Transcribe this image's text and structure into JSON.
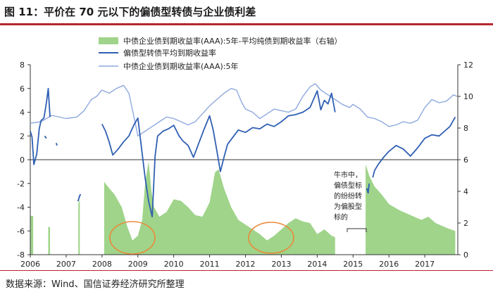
{
  "figure": {
    "title": "图 11：平价在 70 元以下的偏债型转债与企业债利差",
    "source": "数据来源：Wind、国信证券经济研究所整理"
  },
  "chart_data": {
    "type": "line+area",
    "x_labels": [
      "2006",
      "2007",
      "2008",
      "2009",
      "2010",
      "2011",
      "2012",
      "2013",
      "2014",
      "2015",
      "2016",
      "2017"
    ],
    "x_range": [
      2006,
      2017.92
    ],
    "left_axis": {
      "ylim": [
        -8,
        8
      ],
      "ticks": [
        8,
        6,
        4,
        2,
        0,
        -2,
        -4,
        -6,
        -8
      ]
    },
    "right_axis": {
      "ylim": [
        0,
        12
      ],
      "ticks": [
        12,
        10,
        8,
        6,
        4,
        2,
        0
      ]
    },
    "legend": [
      "中债企业债到期收益率(AAA):5年-平均纯债到期收益率（右轴）",
      "偏债型转债平均到期收益率",
      "中债企业债到期收益率(AAA):5年"
    ],
    "legend_position": "top-center",
    "series": [
      {
        "name": "中债企业债到期收益率(AAA):5年-平均纯债到期收益率（右轴）",
        "axis": "right",
        "kind": "area",
        "color": "#9fd48a",
        "segments": [
          [
            [
              2006.0,
              2.45
            ],
            [
              2006.08,
              2.45
            ]
          ],
          [
            [
              2006.5,
              1.75
            ],
            [
              2006.55,
              1.75
            ]
          ],
          [
            [
              2007.34,
              3.2
            ],
            [
              2007.38,
              3.5
            ]
          ],
          [
            [
              2008.06,
              4.6
            ],
            [
              2008.2,
              4.2
            ],
            [
              2008.35,
              3.8
            ],
            [
              2008.55,
              3.0
            ],
            [
              2008.7,
              1.8
            ],
            [
              2008.85,
              0.9
            ],
            [
              2009.0,
              1.2
            ],
            [
              2009.12,
              2.2
            ],
            [
              2009.2,
              4.5
            ],
            [
              2009.3,
              5.9
            ],
            [
              2009.38,
              4.0
            ],
            [
              2009.45,
              3.0
            ],
            [
              2009.6,
              2.4
            ],
            [
              2009.8,
              2.7
            ],
            [
              2010.0,
              3.5
            ],
            [
              2010.2,
              3.4
            ],
            [
              2010.4,
              3.0
            ],
            [
              2010.6,
              2.5
            ],
            [
              2010.8,
              2.4
            ],
            [
              2011.0,
              3.3
            ],
            [
              2011.15,
              5.2
            ],
            [
              2011.25,
              5.4
            ],
            [
              2011.4,
              4.2
            ],
            [
              2011.6,
              3.0
            ],
            [
              2011.8,
              2.2
            ],
            [
              2012.0,
              1.9
            ],
            [
              2012.2,
              1.6
            ],
            [
              2012.4,
              1.3
            ],
            [
              2012.6,
              0.9
            ],
            [
              2012.8,
              1.2
            ],
            [
              2013.0,
              1.6
            ],
            [
              2013.2,
              2.0
            ],
            [
              2013.4,
              2.3
            ],
            [
              2013.6,
              2.1
            ],
            [
              2013.8,
              2.0
            ],
            [
              2014.0,
              1.3
            ],
            [
              2014.2,
              1.6
            ],
            [
              2014.4,
              1.2
            ],
            [
              2014.5,
              1.1
            ]
          ],
          [
            [
              2015.35,
              5.7
            ],
            [
              2015.45,
              5.0
            ],
            [
              2015.6,
              4.3
            ],
            [
              2015.8,
              3.8
            ],
            [
              2016.0,
              3.2
            ],
            [
              2016.3,
              2.8
            ],
            [
              2016.6,
              2.5
            ],
            [
              2016.9,
              2.2
            ],
            [
              2017.1,
              2.4
            ],
            [
              2017.3,
              2.0
            ],
            [
              2017.6,
              1.7
            ],
            [
              2017.85,
              1.5
            ]
          ]
        ]
      },
      {
        "name": "偏债型转债平均到期收益率",
        "axis": "left",
        "kind": "line",
        "color": "#2f5fb3",
        "segments": [
          [
            [
              2006.0,
              2.4
            ],
            [
              2006.05,
              1.9
            ],
            [
              2006.1,
              -0.4
            ],
            [
              2006.18,
              0.5
            ],
            [
              2006.25,
              2.6
            ],
            [
              2006.3,
              3.3
            ],
            [
              2006.38,
              3.5
            ],
            [
              2006.45,
              4.8
            ],
            [
              2006.5,
              6.0
            ],
            [
              2006.55,
              3.6
            ]
          ],
          [
            [
              2006.4,
              2.0
            ],
            [
              2006.45,
              1.8
            ]
          ],
          [
            [
              2006.72,
              1.4
            ],
            [
              2006.75,
              1.2
            ]
          ],
          [
            [
              2007.33,
              -3.5
            ],
            [
              2007.37,
              -3.1
            ],
            [
              2007.4,
              -2.9
            ]
          ],
          [
            [
              2008.0,
              3.0
            ],
            [
              2008.1,
              2.4
            ],
            [
              2008.2,
              1.5
            ],
            [
              2008.3,
              0.4
            ],
            [
              2008.45,
              0.9
            ],
            [
              2008.6,
              1.5
            ],
            [
              2008.75,
              2.0
            ],
            [
              2008.9,
              3.0
            ],
            [
              2009.0,
              3.5
            ],
            [
              2009.1,
              1.0
            ],
            [
              2009.2,
              -1.5
            ],
            [
              2009.3,
              -3.5
            ],
            [
              2009.4,
              -4.8
            ],
            [
              2009.48,
              0.3
            ],
            [
              2009.55,
              2.0
            ],
            [
              2009.7,
              2.4
            ],
            [
              2009.85,
              2.6
            ],
            [
              2010.0,
              2.9
            ],
            [
              2010.15,
              2.0
            ],
            [
              2010.25,
              1.6
            ],
            [
              2010.4,
              1.2
            ],
            [
              2010.55,
              0.2
            ],
            [
              2010.7,
              1.4
            ],
            [
              2010.85,
              2.6
            ],
            [
              2011.0,
              3.7
            ],
            [
              2011.1,
              2.5
            ],
            [
              2011.2,
              0.8
            ],
            [
              2011.3,
              -1.0
            ],
            [
              2011.4,
              0.2
            ],
            [
              2011.5,
              1.3
            ],
            [
              2011.65,
              1.9
            ],
            [
              2011.8,
              2.5
            ],
            [
              2012.0,
              2.3
            ],
            [
              2012.2,
              2.7
            ],
            [
              2012.4,
              2.6
            ],
            [
              2012.6,
              3.0
            ],
            [
              2012.8,
              2.8
            ],
            [
              2013.0,
              3.2
            ],
            [
              2013.2,
              3.7
            ],
            [
              2013.4,
              3.8
            ],
            [
              2013.6,
              4.0
            ],
            [
              2013.8,
              4.4
            ],
            [
              2014.0,
              5.8
            ],
            [
              2014.1,
              4.2
            ],
            [
              2014.2,
              5.0
            ],
            [
              2014.3,
              4.7
            ],
            [
              2014.4,
              5.6
            ],
            [
              2014.5,
              4.0
            ]
          ],
          [
            [
              2015.38,
              -2.4
            ],
            [
              2015.42,
              -2.8
            ],
            [
              2015.45,
              -2.0
            ]
          ],
          [
            [
              2015.55,
              -1.5
            ],
            [
              2015.6,
              -0.9
            ],
            [
              2015.7,
              -0.4
            ],
            [
              2015.85,
              0.2
            ],
            [
              2016.0,
              0.7
            ],
            [
              2016.2,
              1.2
            ],
            [
              2016.4,
              0.9
            ],
            [
              2016.6,
              0.3
            ],
            [
              2016.8,
              1.0
            ],
            [
              2017.0,
              1.8
            ],
            [
              2017.2,
              2.1
            ],
            [
              2017.4,
              2.0
            ],
            [
              2017.55,
              2.4
            ],
            [
              2017.7,
              2.8
            ],
            [
              2017.85,
              3.6
            ]
          ]
        ]
      },
      {
        "name": "中债企业债到期收益率(AAA):5年",
        "axis": "right",
        "kind": "line",
        "color": "#8ea9de",
        "segments": [
          [
            [
              2006.0,
              8.3
            ],
            [
              2006.3,
              8.4
            ],
            [
              2006.6,
              8.8
            ],
            [
              2007.0,
              8.6
            ],
            [
              2007.3,
              8.7
            ],
            [
              2007.5,
              9.1
            ],
            [
              2007.7,
              9.8
            ],
            [
              2007.85,
              10.0
            ],
            [
              2008.0,
              10.4
            ],
            [
              2008.2,
              10.2
            ],
            [
              2008.4,
              10.5
            ],
            [
              2008.6,
              10.7
            ],
            [
              2008.75,
              10.2
            ],
            [
              2008.9,
              8.6
            ],
            [
              2009.0,
              7.5
            ],
            [
              2009.2,
              7.8
            ],
            [
              2009.4,
              8.1
            ],
            [
              2009.6,
              8.4
            ],
            [
              2009.8,
              8.7
            ],
            [
              2010.0,
              8.6
            ],
            [
              2010.2,
              8.4
            ],
            [
              2010.4,
              8.2
            ],
            [
              2010.6,
              8.4
            ],
            [
              2010.8,
              8.9
            ],
            [
              2011.0,
              9.4
            ],
            [
              2011.2,
              9.8
            ],
            [
              2011.4,
              10.2
            ],
            [
              2011.6,
              10.5
            ],
            [
              2011.75,
              10.4
            ],
            [
              2011.9,
              9.6
            ],
            [
              2012.0,
              9.2
            ],
            [
              2012.2,
              9.0
            ],
            [
              2012.4,
              8.6
            ],
            [
              2012.6,
              8.9
            ],
            [
              2012.8,
              9.2
            ],
            [
              2013.0,
              9.1
            ],
            [
              2013.2,
              9.0
            ],
            [
              2013.4,
              9.2
            ],
            [
              2013.6,
              10.0
            ],
            [
              2013.8,
              10.6
            ],
            [
              2013.95,
              10.8
            ],
            [
              2014.1,
              10.4
            ],
            [
              2014.3,
              10.1
            ],
            [
              2014.5,
              9.8
            ],
            [
              2014.7,
              9.5
            ],
            [
              2014.9,
              9.3
            ],
            [
              2015.0,
              9.5
            ],
            [
              2015.2,
              9.2
            ],
            [
              2015.4,
              8.7
            ],
            [
              2015.6,
              8.6
            ],
            [
              2015.8,
              8.4
            ],
            [
              2016.0,
              8.1
            ],
            [
              2016.2,
              8.2
            ],
            [
              2016.4,
              8.4
            ],
            [
              2016.6,
              8.3
            ],
            [
              2016.8,
              8.5
            ],
            [
              2017.0,
              9.3
            ],
            [
              2017.2,
              9.8
            ],
            [
              2017.4,
              9.6
            ],
            [
              2017.6,
              9.7
            ],
            [
              2017.8,
              10.1
            ],
            [
              2017.9,
              10.0
            ]
          ]
        ]
      }
    ],
    "annotations": {
      "side_note": [
        "牛市中，",
        "偏债型标",
        "的纷纷转",
        "为偏股型",
        "标的"
      ]
    }
  }
}
